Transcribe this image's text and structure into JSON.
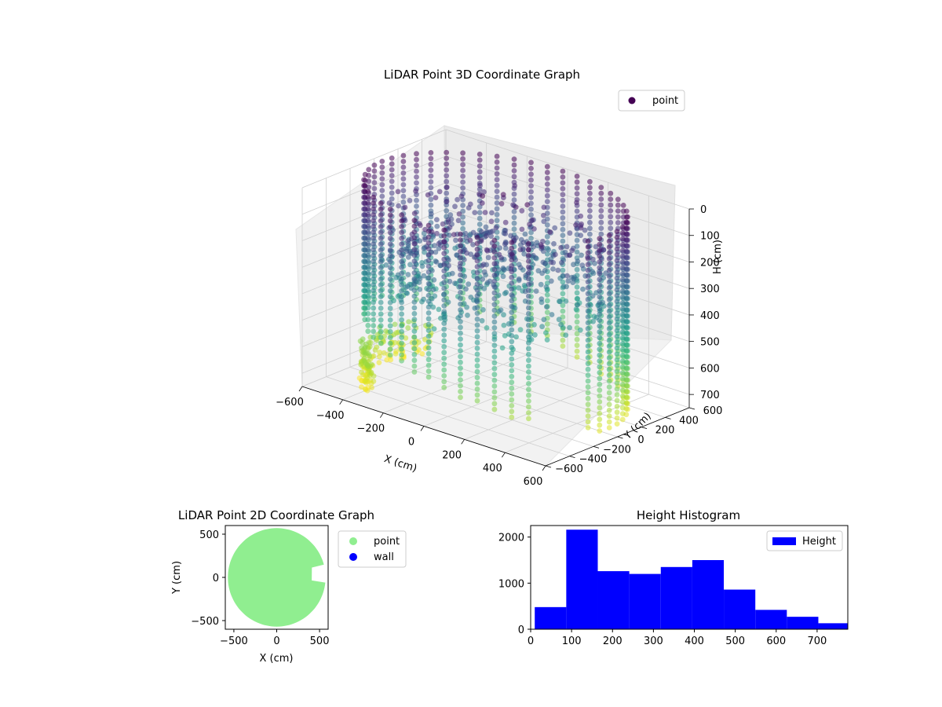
{
  "chart_data": [
    {
      "id": "lidar-3d",
      "type": "scatter",
      "title": "LiDAR Point 3D Coordinate Graph",
      "xlabel": "X (cm)",
      "ylabel": "Y (cm)",
      "zlabel": "H (cm)",
      "xlim": [
        -600,
        600
      ],
      "ylim": [
        -600,
        600
      ],
      "zlim": [
        0,
        750
      ],
      "z_inverted": true,
      "x_ticks": [
        "−600",
        "−400",
        "−200",
        "0",
        "200",
        "400",
        "600"
      ],
      "y_ticks": [
        "−600",
        "−400",
        "−200",
        "0",
        "200",
        "400",
        "600"
      ],
      "z_ticks": [
        "0",
        "100",
        "200",
        "300",
        "400",
        "500",
        "600",
        "700"
      ],
      "colormap": "viridis",
      "legend": {
        "position": "top-right",
        "entries": [
          {
            "label": "point",
            "color": "#440154"
          }
        ]
      },
      "grid": true,
      "structure": {
        "wall_radius": 560,
        "wall_columns": 48,
        "gap_deg_start": 320,
        "gap_deg_end": 345,
        "height_range": [
          0,
          760
        ]
      }
    },
    {
      "id": "lidar-2d",
      "type": "scatter",
      "title": "LiDAR Point 2D Coordinate Graph",
      "xlabel": "X (cm)",
      "ylabel": "Y (cm)",
      "xlim": [
        -600,
        600
      ],
      "ylim": [
        -600,
        600
      ],
      "x_ticks": [
        -500,
        0,
        500
      ],
      "y_ticks": [
        -500,
        0,
        500
      ],
      "legend": {
        "position": "outside-right",
        "entries": [
          {
            "label": "point",
            "color": "#90ee90"
          },
          {
            "label": "wall",
            "color": "#0000ff"
          }
        ]
      },
      "shape": {
        "radius": 570,
        "notch_deg": [
          -5,
          15
        ]
      }
    },
    {
      "id": "height-hist",
      "type": "bar",
      "title": "Height Histogram",
      "xlim": [
        0,
        775
      ],
      "ylim": [
        0,
        2250
      ],
      "x_ticks": [
        0,
        100,
        200,
        300,
        400,
        500,
        600,
        700
      ],
      "y_ticks": [
        0,
        1000,
        2000
      ],
      "bin_edges": [
        10,
        87,
        164,
        241,
        318,
        395,
        472,
        549,
        626,
        703,
        780
      ],
      "values": [
        480,
        2160,
        1260,
        1200,
        1350,
        1500,
        860,
        420,
        270,
        130
      ],
      "color": "#0000ff",
      "legend": {
        "position": "top-right",
        "entries": [
          {
            "label": "Height",
            "color": "#0000ff"
          }
        ]
      }
    }
  ]
}
